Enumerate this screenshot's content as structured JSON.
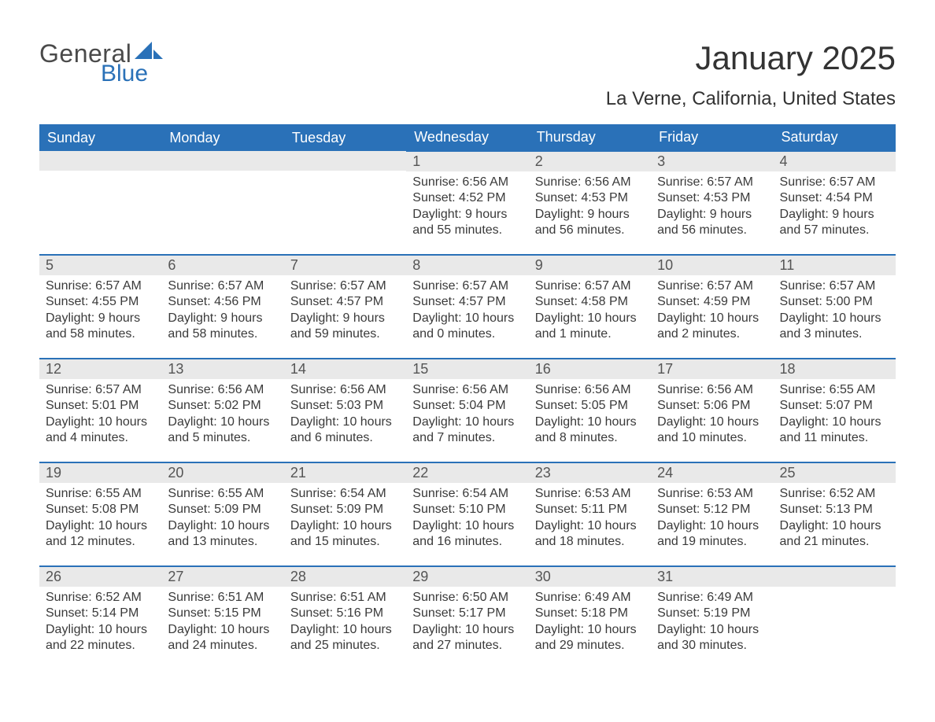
{
  "brand": {
    "general": "General",
    "blue": "Blue"
  },
  "title": "January 2025",
  "subtitle": "La Verne, California, United States",
  "colors": {
    "header_bg": "#2a71b8",
    "header_text": "#ffffff",
    "daynum_bg": "#e9e9e9",
    "border": "#2a71b8",
    "text": "#3a3a3a",
    "page_bg": "#ffffff"
  },
  "weekdays": [
    "Sunday",
    "Monday",
    "Tuesday",
    "Wednesday",
    "Thursday",
    "Friday",
    "Saturday"
  ],
  "leading_blanks": 3,
  "days": [
    {
      "n": 1,
      "sunrise": "6:56 AM",
      "sunset": "4:52 PM",
      "daylight1": "Daylight: 9 hours",
      "daylight2": "and 55 minutes."
    },
    {
      "n": 2,
      "sunrise": "6:56 AM",
      "sunset": "4:53 PM",
      "daylight1": "Daylight: 9 hours",
      "daylight2": "and 56 minutes."
    },
    {
      "n": 3,
      "sunrise": "6:57 AM",
      "sunset": "4:53 PM",
      "daylight1": "Daylight: 9 hours",
      "daylight2": "and 56 minutes."
    },
    {
      "n": 4,
      "sunrise": "6:57 AM",
      "sunset": "4:54 PM",
      "daylight1": "Daylight: 9 hours",
      "daylight2": "and 57 minutes."
    },
    {
      "n": 5,
      "sunrise": "6:57 AM",
      "sunset": "4:55 PM",
      "daylight1": "Daylight: 9 hours",
      "daylight2": "and 58 minutes."
    },
    {
      "n": 6,
      "sunrise": "6:57 AM",
      "sunset": "4:56 PM",
      "daylight1": "Daylight: 9 hours",
      "daylight2": "and 58 minutes."
    },
    {
      "n": 7,
      "sunrise": "6:57 AM",
      "sunset": "4:57 PM",
      "daylight1": "Daylight: 9 hours",
      "daylight2": "and 59 minutes."
    },
    {
      "n": 8,
      "sunrise": "6:57 AM",
      "sunset": "4:57 PM",
      "daylight1": "Daylight: 10 hours",
      "daylight2": "and 0 minutes."
    },
    {
      "n": 9,
      "sunrise": "6:57 AM",
      "sunset": "4:58 PM",
      "daylight1": "Daylight: 10 hours",
      "daylight2": "and 1 minute."
    },
    {
      "n": 10,
      "sunrise": "6:57 AM",
      "sunset": "4:59 PM",
      "daylight1": "Daylight: 10 hours",
      "daylight2": "and 2 minutes."
    },
    {
      "n": 11,
      "sunrise": "6:57 AM",
      "sunset": "5:00 PM",
      "daylight1": "Daylight: 10 hours",
      "daylight2": "and 3 minutes."
    },
    {
      "n": 12,
      "sunrise": "6:57 AM",
      "sunset": "5:01 PM",
      "daylight1": "Daylight: 10 hours",
      "daylight2": "and 4 minutes."
    },
    {
      "n": 13,
      "sunrise": "6:56 AM",
      "sunset": "5:02 PM",
      "daylight1": "Daylight: 10 hours",
      "daylight2": "and 5 minutes."
    },
    {
      "n": 14,
      "sunrise": "6:56 AM",
      "sunset": "5:03 PM",
      "daylight1": "Daylight: 10 hours",
      "daylight2": "and 6 minutes."
    },
    {
      "n": 15,
      "sunrise": "6:56 AM",
      "sunset": "5:04 PM",
      "daylight1": "Daylight: 10 hours",
      "daylight2": "and 7 minutes."
    },
    {
      "n": 16,
      "sunrise": "6:56 AM",
      "sunset": "5:05 PM",
      "daylight1": "Daylight: 10 hours",
      "daylight2": "and 8 minutes."
    },
    {
      "n": 17,
      "sunrise": "6:56 AM",
      "sunset": "5:06 PM",
      "daylight1": "Daylight: 10 hours",
      "daylight2": "and 10 minutes."
    },
    {
      "n": 18,
      "sunrise": "6:55 AM",
      "sunset": "5:07 PM",
      "daylight1": "Daylight: 10 hours",
      "daylight2": "and 11 minutes."
    },
    {
      "n": 19,
      "sunrise": "6:55 AM",
      "sunset": "5:08 PM",
      "daylight1": "Daylight: 10 hours",
      "daylight2": "and 12 minutes."
    },
    {
      "n": 20,
      "sunrise": "6:55 AM",
      "sunset": "5:09 PM",
      "daylight1": "Daylight: 10 hours",
      "daylight2": "and 13 minutes."
    },
    {
      "n": 21,
      "sunrise": "6:54 AM",
      "sunset": "5:09 PM",
      "daylight1": "Daylight: 10 hours",
      "daylight2": "and 15 minutes."
    },
    {
      "n": 22,
      "sunrise": "6:54 AM",
      "sunset": "5:10 PM",
      "daylight1": "Daylight: 10 hours",
      "daylight2": "and 16 minutes."
    },
    {
      "n": 23,
      "sunrise": "6:53 AM",
      "sunset": "5:11 PM",
      "daylight1": "Daylight: 10 hours",
      "daylight2": "and 18 minutes."
    },
    {
      "n": 24,
      "sunrise": "6:53 AM",
      "sunset": "5:12 PM",
      "daylight1": "Daylight: 10 hours",
      "daylight2": "and 19 minutes."
    },
    {
      "n": 25,
      "sunrise": "6:52 AM",
      "sunset": "5:13 PM",
      "daylight1": "Daylight: 10 hours",
      "daylight2": "and 21 minutes."
    },
    {
      "n": 26,
      "sunrise": "6:52 AM",
      "sunset": "5:14 PM",
      "daylight1": "Daylight: 10 hours",
      "daylight2": "and 22 minutes."
    },
    {
      "n": 27,
      "sunrise": "6:51 AM",
      "sunset": "5:15 PM",
      "daylight1": "Daylight: 10 hours",
      "daylight2": "and 24 minutes."
    },
    {
      "n": 28,
      "sunrise": "6:51 AM",
      "sunset": "5:16 PM",
      "daylight1": "Daylight: 10 hours",
      "daylight2": "and 25 minutes."
    },
    {
      "n": 29,
      "sunrise": "6:50 AM",
      "sunset": "5:17 PM",
      "daylight1": "Daylight: 10 hours",
      "daylight2": "and 27 minutes."
    },
    {
      "n": 30,
      "sunrise": "6:49 AM",
      "sunset": "5:18 PM",
      "daylight1": "Daylight: 10 hours",
      "daylight2": "and 29 minutes."
    },
    {
      "n": 31,
      "sunrise": "6:49 AM",
      "sunset": "5:19 PM",
      "daylight1": "Daylight: 10 hours",
      "daylight2": "and 30 minutes."
    }
  ],
  "labels": {
    "sunrise": "Sunrise: ",
    "sunset": "Sunset: "
  }
}
